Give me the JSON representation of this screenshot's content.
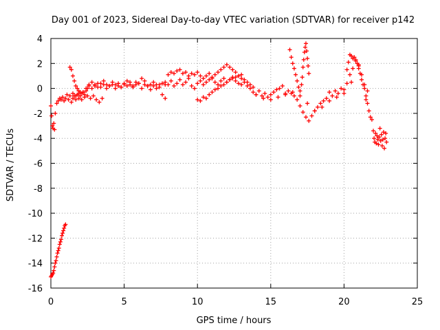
{
  "chart_data": {
    "type": "scatter",
    "title": "Day 001 of 2023, Sidereal Day-to-day VTEC variation (SDTVAR) for receiver p142",
    "xlabel": "GPS time / hours",
    "ylabel": "SDTVAR / TECUs",
    "xlim": [
      0,
      25
    ],
    "ylim": [
      -16,
      4
    ],
    "xticks": [
      0,
      5,
      10,
      15,
      20,
      25
    ],
    "yticks": [
      4,
      2,
      0,
      -2,
      -4,
      -6,
      -8,
      -10,
      -12,
      -14,
      -16
    ],
    "grid": true,
    "marker": "+",
    "color": "#ff0000",
    "series": [
      {
        "name": "SDTVAR",
        "x": [
          0.0,
          0.05,
          0.1,
          0.15,
          0.2,
          0.25,
          0.3,
          0.35,
          0.4,
          0.45,
          0.5,
          0.55,
          0.6,
          0.65,
          0.7,
          0.75,
          0.8,
          0.85,
          0.9,
          0.95,
          1.0,
          0.0,
          0.05,
          0.1,
          0.15,
          0.2,
          0.25,
          0.3,
          0.4,
          0.5,
          0.6,
          0.7,
          0.8,
          0.9,
          1.0,
          1.1,
          1.2,
          1.3,
          1.4,
          1.5,
          1.6,
          1.7,
          1.8,
          1.9,
          2.0,
          2.2,
          2.4,
          2.6,
          2.8,
          3.0,
          3.2,
          3.4,
          3.6,
          3.8,
          4.0,
          4.2,
          4.4,
          4.6,
          4.8,
          5.0,
          5.2,
          5.4,
          5.6,
          5.8,
          6.0,
          6.2,
          6.4,
          6.6,
          6.8,
          7.0,
          7.2,
          7.4,
          7.6,
          7.8,
          1.3,
          1.4,
          1.5,
          1.6,
          1.7,
          1.8,
          1.9,
          2.0,
          2.1,
          2.2,
          2.3,
          2.4,
          2.5,
          2.6,
          2.8,
          3.0,
          3.2,
          3.4,
          3.6,
          3.8,
          4.0,
          4.2,
          4.4,
          4.6,
          4.8,
          5.0,
          5.2,
          5.4,
          5.6,
          5.8,
          6.0,
          6.2,
          6.4,
          6.6,
          6.8,
          7.0,
          7.2,
          7.4,
          7.6,
          7.8,
          1.5,
          1.7,
          1.9,
          2.1,
          2.3,
          2.5,
          2.7,
          2.9,
          3.1,
          3.3,
          3.5,
          8.0,
          8.2,
          8.4,
          8.6,
          8.8,
          9.0,
          9.2,
          9.4,
          9.6,
          9.8,
          10.0,
          10.2,
          10.4,
          10.6,
          10.8,
          11.0,
          11.2,
          11.4,
          11.6,
          11.8,
          12.0,
          12.2,
          12.4,
          12.6,
          12.8,
          13.0,
          13.2,
          13.4,
          13.6,
          13.8,
          7.8,
          8.0,
          8.2,
          8.4,
          8.6,
          8.8,
          9.0,
          9.2,
          9.4,
          9.6,
          9.8,
          10.0,
          10.2,
          10.4,
          10.6,
          10.8,
          11.0,
          11.2,
          11.4,
          11.6,
          11.8,
          12.0,
          12.2,
          12.4,
          12.6,
          12.8,
          13.0,
          13.2,
          13.4,
          10.0,
          10.2,
          10.4,
          10.6,
          10.8,
          11.0,
          11.2,
          11.4,
          11.6,
          11.8,
          12.0,
          12.2,
          12.4,
          12.6,
          12.8,
          13.0,
          13.6,
          13.8,
          14.0,
          14.2,
          14.4,
          14.6,
          14.8,
          15.0,
          15.2,
          15.4,
          15.6,
          15.8,
          16.0,
          16.2,
          16.4,
          16.6,
          16.8,
          17.0,
          17.2,
          17.4,
          17.6,
          17.8,
          18.0,
          18.2,
          18.4,
          18.6,
          18.8,
          19.0,
          19.2,
          19.4,
          19.6,
          19.8,
          20.0,
          20.2,
          20.4,
          20.6,
          20.8,
          21.0,
          21.2,
          21.4,
          21.6,
          14.0,
          14.5,
          15.0,
          15.5,
          16.0,
          16.5,
          17.0,
          17.5,
          18.0,
          18.5,
          19.0,
          19.5,
          20.0,
          20.5,
          21.0,
          21.5,
          16.3,
          16.4,
          16.5,
          16.6,
          16.7,
          16.8,
          16.9,
          17.0,
          17.1,
          17.15,
          17.2,
          17.25,
          17.3,
          17.35,
          17.4,
          17.45,
          17.5,
          17.55,
          17.6,
          20.2,
          20.3,
          20.4,
          20.5,
          20.6,
          20.7,
          20.8,
          20.9,
          21.0,
          21.1,
          21.2,
          21.3,
          21.4,
          21.5,
          21.6,
          21.7,
          21.8,
          21.9,
          22.0,
          22.05,
          22.1,
          22.15,
          22.2,
          22.25,
          22.3,
          22.35,
          22.4,
          22.45,
          22.5,
          22.55,
          22.6,
          22.65,
          22.7,
          22.75,
          22.8,
          22.85,
          22.9
        ],
        "y": [
          -15.1,
          -15.0,
          -14.9,
          -14.8,
          -14.6,
          -14.3,
          -14.0,
          -13.8,
          -13.5,
          -13.2,
          -13.0,
          -12.8,
          -12.5,
          -12.3,
          -12.1,
          -11.8,
          -11.6,
          -11.4,
          -11.2,
          -11.0,
          -10.9,
          -1.4,
          -2.2,
          -3.0,
          -3.2,
          -2.8,
          -3.3,
          -2.0,
          -1.2,
          -1.0,
          -0.8,
          -0.9,
          -0.7,
          -1.0,
          -0.8,
          -0.5,
          -0.9,
          -0.6,
          -1.1,
          -0.8,
          -0.6,
          -0.9,
          -0.5,
          -0.4,
          -0.6,
          -0.3,
          0.0,
          0.2,
          0.0,
          0.3,
          0.1,
          0.4,
          0.6,
          0.3,
          0.2,
          0.5,
          0.3,
          0.4,
          0.1,
          0.3,
          0.2,
          0.5,
          0.1,
          0.3,
          0.4,
          0.0,
          0.3,
          0.2,
          -0.1,
          0.2,
          0.0,
          0.3,
          -0.5,
          -0.8,
          1.7,
          1.5,
          1.0,
          0.6,
          0.2,
          0.0,
          -0.2,
          -0.3,
          -0.4,
          -0.3,
          -0.5,
          -0.2,
          0.0,
          0.3,
          0.5,
          0.2,
          0.4,
          0.1,
          0.3,
          0.0,
          0.2,
          0.3,
          0.0,
          0.2,
          0.1,
          0.4,
          0.6,
          0.3,
          0.2,
          0.5,
          0.4,
          0.8,
          0.6,
          0.2,
          0.3,
          0.5,
          0.3,
          0.1,
          0.4,
          0.3,
          -0.4,
          -0.6,
          -0.8,
          -0.9,
          -0.7,
          -0.6,
          -0.8,
          -0.6,
          -0.9,
          -1.1,
          -0.8,
          1.1,
          1.3,
          1.2,
          1.4,
          1.5,
          1.2,
          1.3,
          1.0,
          1.2,
          1.1,
          1.3,
          1.0,
          0.8,
          1.0,
          1.2,
          0.9,
          1.1,
          1.3,
          1.5,
          1.7,
          1.9,
          1.7,
          1.5,
          1.3,
          1.0,
          0.8,
          0.7,
          0.5,
          0.3,
          0.1,
          0.5,
          0.3,
          0.6,
          0.2,
          0.4,
          0.7,
          0.3,
          0.5,
          0.8,
          0.2,
          0.0,
          0.4,
          0.6,
          0.3,
          0.5,
          0.7,
          0.8,
          0.5,
          0.3,
          0.6,
          0.8,
          0.5,
          0.7,
          0.9,
          0.6,
          0.4,
          0.3,
          0.5,
          0.2,
          -0.9,
          -1.0,
          -0.7,
          -0.8,
          -0.5,
          -0.3,
          -0.1,
          0.0,
          0.2,
          0.3,
          0.5,
          0.7,
          0.8,
          0.9,
          1.0,
          1.1,
          0.0,
          -0.3,
          -0.5,
          -0.2,
          -0.6,
          -0.4,
          -0.7,
          -0.5,
          -0.3,
          -0.1,
          0.0,
          0.2,
          -0.4,
          -0.2,
          -0.4,
          -0.6,
          -0.9,
          -1.4,
          -1.9,
          -2.3,
          -2.6,
          -2.2,
          -1.8,
          -1.5,
          -1.2,
          -1.0,
          -0.8,
          -0.3,
          -0.6,
          -0.2,
          -0.4,
          0.0,
          -0.1,
          0.4,
          1.1,
          1.6,
          2.3,
          1.9,
          1.1,
          0.3,
          -0.2,
          -0.5,
          -0.8,
          -0.9,
          -0.7,
          -0.5,
          -0.3,
          -0.6,
          -1.2,
          -1.8,
          -1.5,
          -1.0,
          -0.7,
          -0.4,
          0.5,
          1.8,
          -0.9,
          3.1,
          2.5,
          2.0,
          1.6,
          1.1,
          0.6,
          0.1,
          -0.2,
          0.3,
          0.9,
          1.7,
          2.3,
          2.9,
          3.3,
          3.6,
          3.0,
          2.4,
          1.8,
          1.2,
          1.5,
          2.1,
          2.7,
          2.6,
          2.4,
          2.5,
          2.2,
          2.0,
          1.6,
          1.2,
          0.7,
          0.3,
          0.0,
          -0.6,
          -1.2,
          -1.8,
          -2.3,
          -2.5,
          -3.4,
          -4.0,
          -4.3,
          -3.6,
          -4.4,
          -3.8,
          -4.1,
          -4.5,
          -3.9,
          -3.2,
          -4.2,
          -3.7,
          -4.6,
          -4.1,
          -3.5,
          -4.8,
          -4.0,
          -3.6,
          -4.3
        ]
      }
    ]
  }
}
